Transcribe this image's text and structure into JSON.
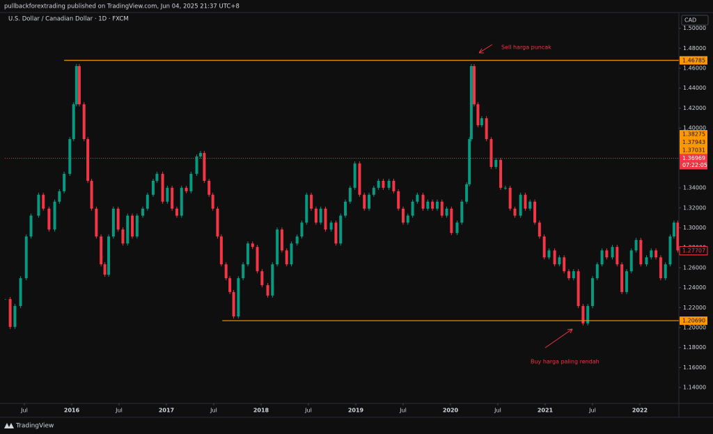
{
  "header": {
    "publisher": "pullbackforextrading published on TradingView.com, Jun 04, 2025 21:37 UTC+8"
  },
  "footer": {
    "brand": "TradingView"
  },
  "chart_data": {
    "type": "candlestick",
    "title": "U.S. Dollar / Canadian Dollar · 1D · FXCM",
    "currency": "CAD",
    "xlim": [
      2015.294,
      2022.412
    ],
    "ylim": [
      1.124,
      1.5144
    ],
    "xticks": [
      {
        "value": 2015.5,
        "label": "Jul"
      },
      {
        "value": 2016,
        "label": "2016"
      },
      {
        "value": 2016.5,
        "label": "Jul"
      },
      {
        "value": 2017,
        "label": "2017"
      },
      {
        "value": 2017.5,
        "label": "Jul"
      },
      {
        "value": 2018,
        "label": "2018"
      },
      {
        "value": 2018.5,
        "label": "Jul"
      },
      {
        "value": 2019,
        "label": "2019"
      },
      {
        "value": 2019.5,
        "label": "Jul"
      },
      {
        "value": 2020,
        "label": "2020"
      },
      {
        "value": 2020.5,
        "label": "Jul"
      },
      {
        "value": 2021,
        "label": "2021"
      },
      {
        "value": 2021.5,
        "label": "Jul"
      },
      {
        "value": 2022,
        "label": "2022"
      }
    ],
    "yticks": [
      {
        "value": 1.14,
        "label": "1.14000"
      },
      {
        "value": 1.16,
        "label": "1.16000"
      },
      {
        "value": 1.18,
        "label": "1.18000"
      },
      {
        "value": 1.2,
        "label": "1.20000"
      },
      {
        "value": 1.22,
        "label": "1.22000"
      },
      {
        "value": 1.24,
        "label": "1.24000"
      },
      {
        "value": 1.26,
        "label": "1.26000"
      },
      {
        "value": 1.28,
        "label": "1.28000"
      },
      {
        "value": 1.3,
        "label": "1.30000"
      },
      {
        "value": 1.32,
        "label": "1.32000"
      },
      {
        "value": 1.34,
        "label": "1.34000"
      },
      {
        "value": 1.4,
        "label": "1.40000"
      },
      {
        "value": 1.42,
        "label": "1.42000"
      },
      {
        "value": 1.44,
        "label": "1.44000"
      },
      {
        "value": 1.46,
        "label": "1.46000"
      },
      {
        "value": 1.48,
        "label": "1.48000"
      },
      {
        "value": 1.5,
        "label": "1.50000"
      }
    ],
    "up_color": "#089981",
    "down_color": "#f23645",
    "series": [
      {
        "name": "USDCAD",
        "x": [
          2015.29,
          2015.35,
          2015.4,
          2015.46,
          2015.52,
          2015.57,
          2015.65,
          2015.7,
          2015.76,
          2015.82,
          2015.87,
          2015.92,
          2015.98,
          2016.02,
          2016.05,
          2016.08,
          2016.13,
          2016.17,
          2016.21,
          2016.26,
          2016.31,
          2016.35,
          2016.39,
          2016.44,
          2016.49,
          2016.54,
          2016.59,
          2016.64,
          2016.69,
          2016.75,
          2016.8,
          2016.86,
          2016.9,
          2016.96,
          2017.01,
          2017.06,
          2017.11,
          2017.16,
          2017.21,
          2017.26,
          2017.32,
          2017.36,
          2017.4,
          2017.45,
          2017.49,
          2017.54,
          2017.58,
          2017.63,
          2017.67,
          2017.71,
          2017.76,
          2017.81,
          2017.86,
          2017.91,
          2017.96,
          2018.01,
          2018.07,
          2018.12,
          2018.17,
          2018.22,
          2018.27,
          2018.32,
          2018.38,
          2018.43,
          2018.48,
          2018.53,
          2018.58,
          2018.63,
          2018.68,
          2018.74,
          2018.79,
          2018.84,
          2018.89,
          2018.94,
          2018.99,
          2019.04,
          2019.09,
          2019.14,
          2019.19,
          2019.24,
          2019.29,
          2019.35,
          2019.4,
          2019.45,
          2019.5,
          2019.55,
          2019.6,
          2019.65,
          2019.71,
          2019.76,
          2019.81,
          2019.86,
          2019.91,
          2019.96,
          2020.01,
          2020.07,
          2020.12,
          2020.17,
          2020.2,
          2020.22,
          2020.25,
          2020.29,
          2020.33,
          2020.38,
          2020.43,
          2020.48,
          2020.53,
          2020.58,
          2020.63,
          2020.68,
          2020.74,
          2020.79,
          2020.84,
          2020.89,
          2020.94,
          2020.99,
          2021.04,
          2021.1,
          2021.15,
          2021.2,
          2021.25,
          2021.3,
          2021.35,
          2021.4,
          2021.45,
          2021.5,
          2021.55,
          2021.6,
          2021.65,
          2021.71,
          2021.76,
          2021.81,
          2021.86,
          2021.91,
          2021.96,
          2022.01,
          2022.07,
          2022.12,
          2022.17,
          2022.22,
          2022.27,
          2022.32,
          2022.36,
          2022.4
        ],
        "values": [
          1.2286,
          1.2007,
          1.2216,
          1.2495,
          1.2913,
          1.3122,
          1.3331,
          1.3192,
          1.2983,
          1.3262,
          1.3366,
          1.3541,
          1.3889,
          1.4238,
          1.4621,
          1.4238,
          1.3889,
          1.3471,
          1.3192,
          1.2913,
          1.2634,
          1.253,
          1.2913,
          1.3192,
          1.2983,
          1.2843,
          1.3122,
          1.2913,
          1.3122,
          1.3192,
          1.3331,
          1.3471,
          1.3541,
          1.3262,
          1.3401,
          1.3192,
          1.3122,
          1.3401,
          1.3366,
          1.3541,
          1.3715,
          1.375,
          1.3471,
          1.3331,
          1.3192,
          1.2913,
          1.2634,
          1.2495,
          1.2356,
          1.2112,
          1.2495,
          1.2634,
          1.2843,
          1.2808,
          1.2565,
          1.2425,
          1.2321,
          1.2634,
          1.2983,
          1.2773,
          1.2634,
          1.2843,
          1.2913,
          1.3052,
          1.3331,
          1.3192,
          1.3052,
          1.3192,
          1.2983,
          1.3052,
          1.2843,
          1.3122,
          1.3262,
          1.3401,
          1.3645,
          1.3331,
          1.3192,
          1.3331,
          1.3401,
          1.3471,
          1.3401,
          1.3471,
          1.3366,
          1.3192,
          1.3052,
          1.3122,
          1.3262,
          1.3331,
          1.3192,
          1.3262,
          1.3192,
          1.3262,
          1.3122,
          1.3192,
          1.2948,
          1.3052,
          1.3262,
          1.3436,
          1.3889,
          1.4621,
          1.4238,
          1.4028,
          1.4098,
          1.3889,
          1.361,
          1.368,
          1.3401,
          1.3401,
          1.3192,
          1.3122,
          1.3331,
          1.3192,
          1.3262,
          1.3052,
          1.2913,
          1.2704,
          1.2773,
          1.2634,
          1.2704,
          1.2565,
          1.2495,
          1.2565,
          1.2216,
          1.2042,
          1.2216,
          1.2495,
          1.2634,
          1.2773,
          1.2704,
          1.2808,
          1.2634,
          1.2356,
          1.2565,
          1.2773,
          1.2878,
          1.2634,
          1.2704,
          1.2773,
          1.2704,
          1.2495,
          1.2634,
          1.2913,
          1.3052,
          1.2773
        ]
      }
    ],
    "hlines": [
      {
        "value": 1.46785,
        "label": "1.46785",
        "start": 2015.92,
        "color": "#ff9800"
      },
      {
        "value": 1.2069,
        "label": "1.20690",
        "start": 2017.59,
        "color": "#ff9800"
      }
    ],
    "current_price": {
      "value": 1.36969,
      "label": "1.36969",
      "countdown": "07:22:05",
      "color": "#f23645"
    },
    "stacked_labels": [
      {
        "value": 1.38275,
        "label": "1.38275"
      },
      {
        "value": 1.37943,
        "label": "1.37943"
      },
      {
        "value": 1.37031,
        "label": "1.37031"
      }
    ],
    "marker_label": {
      "value": 1.27707,
      "label": "1.27707"
    },
    "annotations": [
      {
        "text": "Sell harga puncak"
      },
      {
        "text": "Buy harga paling rendah"
      }
    ]
  }
}
